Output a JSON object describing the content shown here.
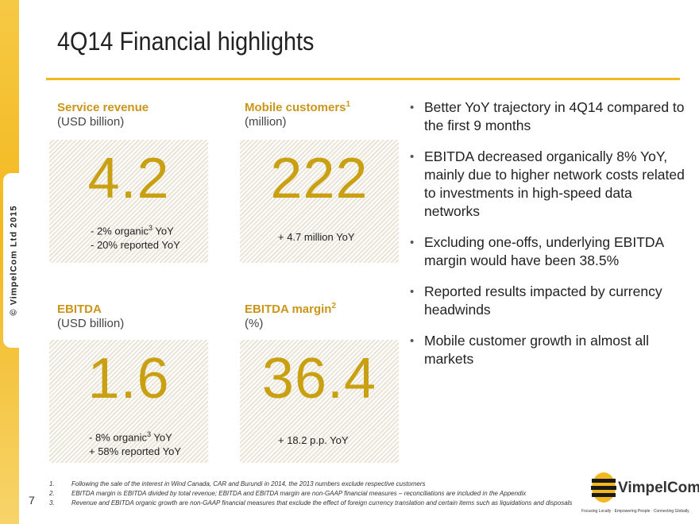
{
  "sidebar": {
    "copyright": "© VimpelCom Ltd 2015"
  },
  "header": {
    "title": "4Q14 Financial highlights"
  },
  "metrics": [
    {
      "label": "Service revenue",
      "label_sup": "",
      "unit": "(USD billion)",
      "value": "4.2",
      "lines": [
        {
          "sign": "-",
          "text": " 2% organic",
          "sup": "3",
          "after": " YoY"
        },
        {
          "sign": "-",
          "text": " 20% reported YoY",
          "sup": "",
          "after": ""
        }
      ]
    },
    {
      "label": "Mobile customers",
      "label_sup": "1",
      "unit": "(million)",
      "value": "222",
      "lines": [
        {
          "sign": "+",
          "text": " 4.7 million YoY",
          "sup": "",
          "after": ""
        }
      ]
    },
    {
      "label": "EBITDA",
      "label_sup": "",
      "unit": "(USD billion)",
      "value": "1.6",
      "lines": [
        {
          "sign": "-",
          "text": " 8% organic",
          "sup": "3",
          "after": " YoY"
        },
        {
          "sign": "+",
          "text": " 58% reported YoY",
          "sup": "",
          "after": ""
        }
      ]
    },
    {
      "label": "EBITDA margin",
      "label_sup": "2",
      "unit": "(%)",
      "value": "36.4",
      "lines": [
        {
          "sign": "+",
          "text": " 18.2 p.p. YoY",
          "sup": "",
          "after": ""
        }
      ]
    }
  ],
  "bullets": [
    "Better YoY trajectory in 4Q14 compared to the first 9 months",
    "EBITDA decreased organically 8% YoY, mainly due to higher network costs related to investments in high-speed data networks",
    "Excluding one-offs, underlying EBITDA margin would have been 38.5%",
    "Reported results impacted by currency headwinds",
    "Mobile customer growth in almost all markets"
  ],
  "footnotes": [
    {
      "n": "1.",
      "text": "Following the sale of the interest in Wind Canada, CAR and Burundi in 2014, the 2013 numbers exclude respective customers"
    },
    {
      "n": "2.",
      "text": "EBITDA margin is EBITDA divided by total revenue; EBITDA and EBITDA margin are non-GAAP financial measures – reconciliations are included in the Appendix"
    },
    {
      "n": "3.",
      "text": "Revenue and EBITDA organic growth are non-GAAP financial measures that exclude the effect of foreign currency translation and certain items such as liquidations and disposals"
    }
  ],
  "page_number": "7",
  "logo": {
    "name": "VimpelCom",
    "tagline": "Focusing Locally · Empowering People · Connecting Globally"
  },
  "colors": {
    "accent": "#f3b81e",
    "metric_value": "#c9a012",
    "metric_label": "#c9961a"
  }
}
